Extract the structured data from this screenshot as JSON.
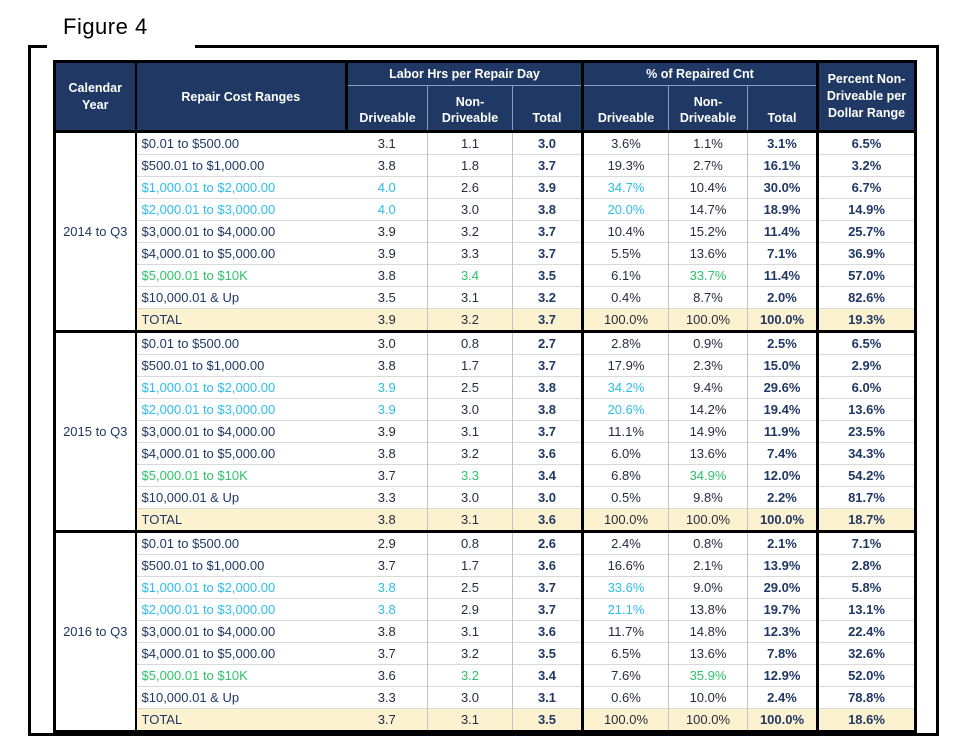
{
  "figure_label": "Figure 4",
  "colors": {
    "header_bg": "#1F3864",
    "text_navy": "#1F3864",
    "number_ink": "#262B3F",
    "highlight_cyan": "#2FBCEC",
    "highlight_green": "#2FC069",
    "total_row_bg": "#FCF2CF"
  },
  "table": {
    "header": {
      "calendar_year": "Calendar Year",
      "repair_cost_ranges": "Repair Cost Ranges",
      "labor_group": "Labor Hrs per Repair Day",
      "pct_group": "% of Repaired Cnt",
      "driveable": "Driveable",
      "non_driveable": "Non-Driveable",
      "total": "Total",
      "pct_non_driveable_per_dollar": "Percent Non-Driveable per Dollar Range"
    },
    "blocks": [
      {
        "year": "2014 to Q3",
        "rows": [
          {
            "range": "$0.01 to $500.00",
            "labor_driveable": "3.1",
            "labor_non_driveable": "1.1",
            "labor_total": "3.0",
            "pct_driveable": "3.6%",
            "pct_non_driveable": "1.1%",
            "pct_total": "3.1%",
            "pct_nondrv_dollar": "6.5%",
            "style": null
          },
          {
            "range": "$500.01 to $1,000.00",
            "labor_driveable": "3.8",
            "labor_non_driveable": "1.8",
            "labor_total": "3.7",
            "pct_driveable": "19.3%",
            "pct_non_driveable": "2.7%",
            "pct_total": "16.1%",
            "pct_nondrv_dollar": "3.2%",
            "style": null
          },
          {
            "range": "$1,000.01 to $2,000.00",
            "labor_driveable": "4.0",
            "labor_non_driveable": "2.6",
            "labor_total": "3.9",
            "pct_driveable": "34.7%",
            "pct_non_driveable": "10.4%",
            "pct_total": "30.0%",
            "pct_nondrv_dollar": "6.7%",
            "style": "cyan"
          },
          {
            "range": "$2,000.01 to $3,000.00",
            "labor_driveable": "4.0",
            "labor_non_driveable": "3.0",
            "labor_total": "3.8",
            "pct_driveable": "20.0%",
            "pct_non_driveable": "14.7%",
            "pct_total": "18.9%",
            "pct_nondrv_dollar": "14.9%",
            "style": "cyan"
          },
          {
            "range": "$3,000.01 to $4,000.00",
            "labor_driveable": "3.9",
            "labor_non_driveable": "3.2",
            "labor_total": "3.7",
            "pct_driveable": "10.4%",
            "pct_non_driveable": "15.2%",
            "pct_total": "11.4%",
            "pct_nondrv_dollar": "25.7%",
            "style": null
          },
          {
            "range": "$4,000.01 to $5,000.00",
            "labor_driveable": "3.9",
            "labor_non_driveable": "3.3",
            "labor_total": "3.7",
            "pct_driveable": "5.5%",
            "pct_non_driveable": "13.6%",
            "pct_total": "7.1%",
            "pct_nondrv_dollar": "36.9%",
            "style": null
          },
          {
            "range": "$5,000.01 to $10K",
            "labor_driveable": "3.8",
            "labor_non_driveable": "3.4",
            "labor_total": "3.5",
            "pct_driveable": "6.1%",
            "pct_non_driveable": "33.7%",
            "pct_total": "11.4%",
            "pct_nondrv_dollar": "57.0%",
            "style": "green"
          },
          {
            "range": "$10,000.01 & Up",
            "labor_driveable": "3.5",
            "labor_non_driveable": "3.1",
            "labor_total": "3.2",
            "pct_driveable": "0.4%",
            "pct_non_driveable": "8.7%",
            "pct_total": "2.0%",
            "pct_nondrv_dollar": "82.6%",
            "style": null
          },
          {
            "range": "TOTAL",
            "labor_driveable": "3.9",
            "labor_non_driveable": "3.2",
            "labor_total": "3.7",
            "pct_driveable": "100.0%",
            "pct_non_driveable": "100.0%",
            "pct_total": "100.0%",
            "pct_nondrv_dollar": "19.3%",
            "style": "total"
          }
        ]
      },
      {
        "year": "2015 to Q3",
        "rows": [
          {
            "range": "$0.01 to $500.00",
            "labor_driveable": "3.0",
            "labor_non_driveable": "0.8",
            "labor_total": "2.7",
            "pct_driveable": "2.8%",
            "pct_non_driveable": "0.9%",
            "pct_total": "2.5%",
            "pct_nondrv_dollar": "6.5%",
            "style": null
          },
          {
            "range": "$500.01 to $1,000.00",
            "labor_driveable": "3.8",
            "labor_non_driveable": "1.7",
            "labor_total": "3.7",
            "pct_driveable": "17.9%",
            "pct_non_driveable": "2.3%",
            "pct_total": "15.0%",
            "pct_nondrv_dollar": "2.9%",
            "style": null
          },
          {
            "range": "$1,000.01 to $2,000.00",
            "labor_driveable": "3.9",
            "labor_non_driveable": "2.5",
            "labor_total": "3.8",
            "pct_driveable": "34.2%",
            "pct_non_driveable": "9.4%",
            "pct_total": "29.6%",
            "pct_nondrv_dollar": "6.0%",
            "style": "cyan"
          },
          {
            "range": "$2,000.01 to $3,000.00",
            "labor_driveable": "3.9",
            "labor_non_driveable": "3.0",
            "labor_total": "3.8",
            "pct_driveable": "20.6%",
            "pct_non_driveable": "14.2%",
            "pct_total": "19.4%",
            "pct_nondrv_dollar": "13.6%",
            "style": "cyan"
          },
          {
            "range": "$3,000.01 to $4,000.00",
            "labor_driveable": "3.9",
            "labor_non_driveable": "3.1",
            "labor_total": "3.7",
            "pct_driveable": "11.1%",
            "pct_non_driveable": "14.9%",
            "pct_total": "11.9%",
            "pct_nondrv_dollar": "23.5%",
            "style": null
          },
          {
            "range": "$4,000.01 to $5,000.00",
            "labor_driveable": "3.8",
            "labor_non_driveable": "3.2",
            "labor_total": "3.6",
            "pct_driveable": "6.0%",
            "pct_non_driveable": "13.6%",
            "pct_total": "7.4%",
            "pct_nondrv_dollar": "34.3%",
            "style": null
          },
          {
            "range": "$5,000.01 to $10K",
            "labor_driveable": "3.7",
            "labor_non_driveable": "3.3",
            "labor_total": "3.4",
            "pct_driveable": "6.8%",
            "pct_non_driveable": "34.9%",
            "pct_total": "12.0%",
            "pct_nondrv_dollar": "54.2%",
            "style": "green"
          },
          {
            "range": "$10,000.01 & Up",
            "labor_driveable": "3.3",
            "labor_non_driveable": "3.0",
            "labor_total": "3.0",
            "pct_driveable": "0.5%",
            "pct_non_driveable": "9.8%",
            "pct_total": "2.2%",
            "pct_nondrv_dollar": "81.7%",
            "style": null
          },
          {
            "range": "TOTAL",
            "labor_driveable": "3.8",
            "labor_non_driveable": "3.1",
            "labor_total": "3.6",
            "pct_driveable": "100.0%",
            "pct_non_driveable": "100.0%",
            "pct_total": "100.0%",
            "pct_nondrv_dollar": "18.7%",
            "style": "total"
          }
        ]
      },
      {
        "year": "2016 to Q3",
        "rows": [
          {
            "range": "$0.01 to $500.00",
            "labor_driveable": "2.9",
            "labor_non_driveable": "0.8",
            "labor_total": "2.6",
            "pct_driveable": "2.4%",
            "pct_non_driveable": "0.8%",
            "pct_total": "2.1%",
            "pct_nondrv_dollar": "7.1%",
            "style": null
          },
          {
            "range": "$500.01 to $1,000.00",
            "labor_driveable": "3.7",
            "labor_non_driveable": "1.7",
            "labor_total": "3.6",
            "pct_driveable": "16.6%",
            "pct_non_driveable": "2.1%",
            "pct_total": "13.9%",
            "pct_nondrv_dollar": "2.8%",
            "style": null
          },
          {
            "range": "$1,000.01 to $2,000.00",
            "labor_driveable": "3.8",
            "labor_non_driveable": "2.5",
            "labor_total": "3.7",
            "pct_driveable": "33.6%",
            "pct_non_driveable": "9.0%",
            "pct_total": "29.0%",
            "pct_nondrv_dollar": "5.8%",
            "style": "cyan"
          },
          {
            "range": "$2,000.01 to $3,000.00",
            "labor_driveable": "3.8",
            "labor_non_driveable": "2.9",
            "labor_total": "3.7",
            "pct_driveable": "21.1%",
            "pct_non_driveable": "13.8%",
            "pct_total": "19.7%",
            "pct_nondrv_dollar": "13.1%",
            "style": "cyan"
          },
          {
            "range": "$3,000.01 to $4,000.00",
            "labor_driveable": "3.8",
            "labor_non_driveable": "3.1",
            "labor_total": "3.6",
            "pct_driveable": "11.7%",
            "pct_non_driveable": "14.8%",
            "pct_total": "12.3%",
            "pct_nondrv_dollar": "22.4%",
            "style": null
          },
          {
            "range": "$4,000.01 to $5,000.00",
            "labor_driveable": "3.7",
            "labor_non_driveable": "3.2",
            "labor_total": "3.5",
            "pct_driveable": "6.5%",
            "pct_non_driveable": "13.6%",
            "pct_total": "7.8%",
            "pct_nondrv_dollar": "32.6%",
            "style": null
          },
          {
            "range": "$5,000.01 to $10K",
            "labor_driveable": "3.6",
            "labor_non_driveable": "3.2",
            "labor_total": "3.4",
            "pct_driveable": "7.6%",
            "pct_non_driveable": "35.9%",
            "pct_total": "12.9%",
            "pct_nondrv_dollar": "52.0%",
            "style": "green"
          },
          {
            "range": "$10,000.01 & Up",
            "labor_driveable": "3.3",
            "labor_non_driveable": "3.0",
            "labor_total": "3.1",
            "pct_driveable": "0.6%",
            "pct_non_driveable": "10.0%",
            "pct_total": "2.4%",
            "pct_nondrv_dollar": "78.8%",
            "style": null
          },
          {
            "range": "TOTAL",
            "labor_driveable": "3.7",
            "labor_non_driveable": "3.1",
            "labor_total": "3.5",
            "pct_driveable": "100.0%",
            "pct_non_driveable": "100.0%",
            "pct_total": "100.0%",
            "pct_nondrv_dollar": "18.6%",
            "style": "total"
          }
        ]
      }
    ]
  }
}
